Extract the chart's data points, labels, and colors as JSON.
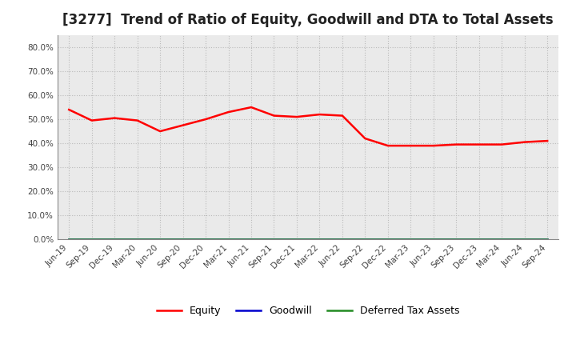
{
  "title": "[3277]  Trend of Ratio of Equity, Goodwill and DTA to Total Assets",
  "x_labels": [
    "Jun-19",
    "Sep-19",
    "Dec-19",
    "Mar-20",
    "Jun-20",
    "Sep-20",
    "Dec-20",
    "Mar-21",
    "Jun-21",
    "Sep-21",
    "Dec-21",
    "Mar-22",
    "Jun-22",
    "Sep-22",
    "Dec-22",
    "Mar-23",
    "Jun-23",
    "Sep-23",
    "Dec-23",
    "Mar-24",
    "Jun-24",
    "Sep-24"
  ],
  "equity": [
    0.54,
    0.495,
    0.505,
    0.495,
    0.45,
    0.475,
    0.5,
    0.53,
    0.55,
    0.515,
    0.51,
    0.52,
    0.515,
    0.42,
    0.39,
    0.39,
    0.39,
    0.395,
    0.395,
    0.395,
    0.405,
    0.41
  ],
  "goodwill": [
    0.0,
    0.0,
    0.0,
    0.0,
    0.0,
    0.0,
    0.0,
    0.0,
    0.0,
    0.0,
    0.0,
    0.0,
    0.0,
    0.0,
    0.0,
    0.0,
    0.0,
    0.0,
    0.0,
    0.0,
    0.0,
    0.0
  ],
  "dta": [
    0.0,
    0.0,
    0.0,
    0.0,
    0.0,
    0.0,
    0.0,
    0.0,
    0.0,
    0.0,
    0.0,
    0.0,
    0.0,
    0.0,
    0.0,
    0.0,
    0.0,
    0.0,
    0.0,
    0.0,
    0.0,
    0.0
  ],
  "equity_color": "#FF0000",
  "goodwill_color": "#0000CD",
  "dta_color": "#228B22",
  "ylim": [
    0.0,
    0.85
  ],
  "yticks": [
    0.0,
    0.1,
    0.2,
    0.3,
    0.4,
    0.5,
    0.6,
    0.7,
    0.8
  ],
  "background_color": "#FFFFFF",
  "plot_bg_color": "#EAEAEA",
  "grid_color": "#BBBBBB",
  "title_fontsize": 12,
  "legend_labels": [
    "Equity",
    "Goodwill",
    "Deferred Tax Assets"
  ]
}
